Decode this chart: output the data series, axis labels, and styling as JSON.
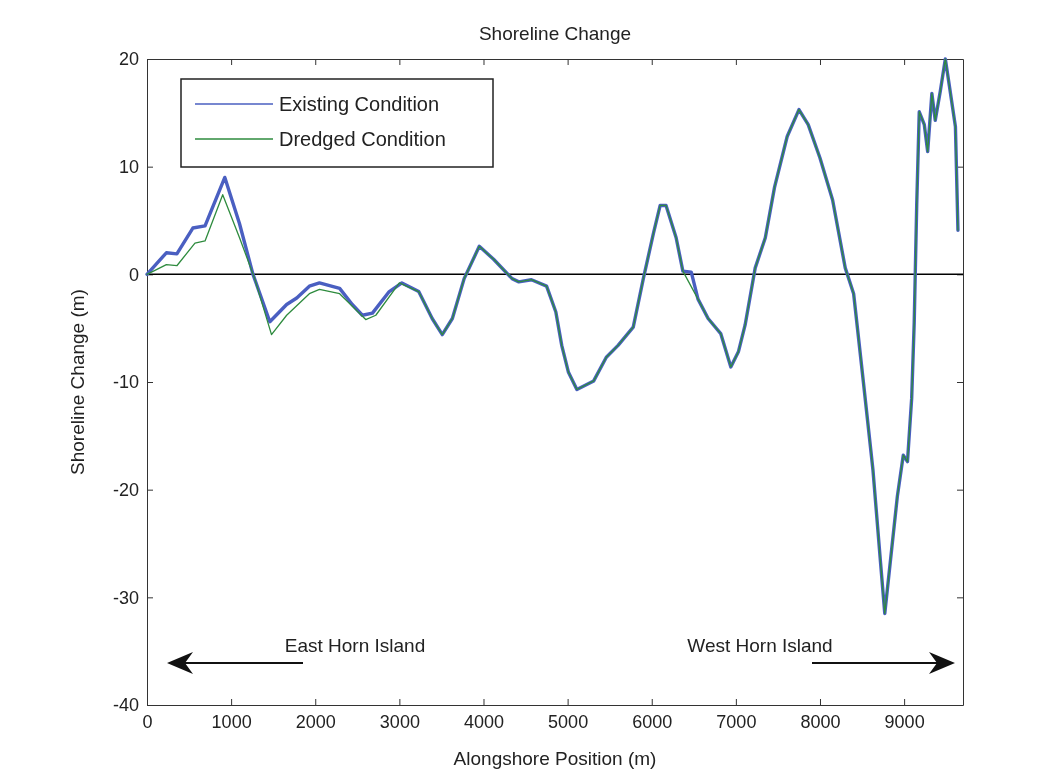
{
  "chart_data": {
    "type": "line",
    "title": "Shoreline Change",
    "xlabel": "Alongshore Position (m)",
    "ylabel": "Shoreline Change (m)",
    "xlim": [
      0,
      9700
    ],
    "xticks": [
      0,
      1000,
      2000,
      3000,
      4000,
      5000,
      6000,
      7000,
      8000,
      9000
    ],
    "ylim": [
      -40,
      20
    ],
    "yticks": [
      -40,
      -30,
      -20,
      -10,
      0,
      10,
      20
    ],
    "grid": false,
    "legend": "top left",
    "line_style": "solid",
    "marker": "none",
    "ref_lines": [
      {
        "axis": "y",
        "value": 0,
        "color": "#000000"
      }
    ],
    "annotations": [
      "East Horn Island",
      "West Horn Island"
    ],
    "series": [
      {
        "name": "Existing Condition",
        "color": "#4a5fc1",
        "x": [
          0,
          230,
          355,
          545,
          690,
          925,
          1100,
          1260,
          1460,
          1660,
          1780,
          1930,
          2050,
          2290,
          2440,
          2560,
          2680,
          2880,
          3030,
          3230,
          3390,
          3510,
          3630,
          3770,
          3950,
          4120,
          4340,
          4420,
          4570,
          4750,
          4860,
          4930,
          5010,
          5110,
          5310,
          5460,
          5600,
          5780,
          5900,
          6020,
          6100,
          6170,
          6290,
          6370,
          6470,
          6550,
          6670,
          6820,
          6940,
          7030,
          7110,
          7230,
          7350,
          7460,
          7610,
          7750,
          7860,
          8000,
          8150,
          8300,
          8400,
          8520,
          8630,
          8720,
          8770,
          8840,
          8920,
          8990,
          9040,
          9090,
          9120,
          9150,
          9180,
          9240,
          9280,
          9330,
          9370,
          9430,
          9490,
          9540,
          9610,
          9640
        ],
        "values": [
          0,
          2.0,
          1.9,
          4.3,
          4.5,
          9.0,
          4.7,
          0,
          -4.4,
          -2.8,
          -2.2,
          -1.1,
          -0.8,
          -1.3,
          -2.8,
          -3.8,
          -3.6,
          -1.6,
          -0.8,
          -1.6,
          -4.1,
          -5.6,
          -4.1,
          -0.4,
          2.6,
          1.4,
          -0.4,
          -0.7,
          -0.5,
          -1.1,
          -3.5,
          -6.6,
          -9.1,
          -10.7,
          -9.9,
          -7.7,
          -6.6,
          -4.9,
          -0.4,
          3.8,
          6.4,
          6.4,
          3.4,
          0.3,
          0.2,
          -2.3,
          -4.1,
          -5.5,
          -8.6,
          -7.2,
          -4.7,
          0.6,
          3.4,
          8.1,
          12.8,
          15.3,
          13.9,
          10.8,
          6.9,
          0.6,
          -1.8,
          -10.3,
          -18.2,
          -26.8,
          -31.5,
          -26.4,
          -20.6,
          -16.8,
          -17.4,
          -11.5,
          -4.5,
          6.5,
          15.1,
          13.9,
          11.4,
          16.8,
          14.3,
          17.0,
          20.0,
          17.4,
          13.7,
          4.1
        ]
      },
      {
        "name": "Dredged Condition",
        "color": "#2e8b3e",
        "x": [
          0,
          230,
          355,
          570,
          690,
          900,
          1100,
          1280,
          1480,
          1660,
          1930,
          2050,
          2290,
          2600,
          2720,
          3000,
          3230,
          3390,
          3510,
          3630,
          3770,
          3950,
          4120,
          4340,
          4420,
          4570,
          4750,
          4860,
          4930,
          5010,
          5110,
          5310,
          5460,
          5600,
          5780,
          5900,
          6020,
          6100,
          6170,
          6290,
          6370,
          6550,
          6670,
          6820,
          6940,
          7030,
          7110,
          7230,
          7350,
          7460,
          7610,
          7750,
          7860,
          8000,
          8150,
          8300,
          8400,
          8520,
          8630,
          8720,
          8770,
          8840,
          8920,
          8990,
          9040,
          9090,
          9120,
          9150,
          9180,
          9240,
          9280,
          9330,
          9370,
          9430,
          9490,
          9540,
          9610,
          9640
        ],
        "values": [
          0,
          0.9,
          0.8,
          2.9,
          3.1,
          7.4,
          3.4,
          -0.4,
          -5.6,
          -3.8,
          -1.8,
          -1.4,
          -1.8,
          -4.2,
          -3.8,
          -0.8,
          -1.6,
          -4.1,
          -5.6,
          -4.1,
          -0.4,
          2.6,
          1.4,
          -0.4,
          -0.7,
          -0.5,
          -1.1,
          -3.5,
          -6.6,
          -9.1,
          -10.7,
          -9.9,
          -7.7,
          -6.6,
          -4.9,
          -0.4,
          3.8,
          6.4,
          6.4,
          3.4,
          0.3,
          -2.3,
          -4.1,
          -5.5,
          -8.6,
          -7.2,
          -4.7,
          0.6,
          3.4,
          8.1,
          12.8,
          15.3,
          13.9,
          10.8,
          6.9,
          0.6,
          -1.8,
          -10.3,
          -18.2,
          -26.8,
          -31.5,
          -26.4,
          -20.6,
          -16.8,
          -17.4,
          -11.5,
          -4.5,
          6.5,
          15.1,
          13.9,
          11.4,
          16.8,
          14.3,
          17.0,
          20.0,
          17.4,
          13.7,
          4.1
        ]
      }
    ]
  }
}
